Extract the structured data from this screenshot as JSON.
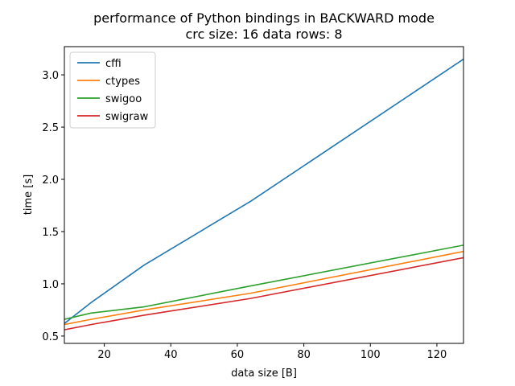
{
  "chart_data": {
    "type": "line",
    "title": "performance of Python bindings in BACKWARD mode",
    "subtitle": "crc size: 16 data rows: 8",
    "xlabel": "data size [B]",
    "ylabel": "time [s]",
    "xlim": [
      8,
      128
    ],
    "ylim": [
      0.43,
      3.27
    ],
    "xticks": [
      20,
      40,
      60,
      80,
      100,
      120
    ],
    "yticks": [
      0.5,
      1.0,
      1.5,
      2.0,
      2.5,
      3.0
    ],
    "xtick_labels": [
      "20",
      "40",
      "60",
      "80",
      "100",
      "120"
    ],
    "ytick_labels": [
      "0.5",
      "1.0",
      "1.5",
      "2.0",
      "2.5",
      "3.0"
    ],
    "grid": false,
    "legend_position": "top-left",
    "x": [
      8,
      16,
      32,
      64,
      128
    ],
    "series": [
      {
        "name": "cffi",
        "color": "#1f77b4",
        "values": [
          0.62,
          0.82,
          1.18,
          1.79,
          3.15
        ]
      },
      {
        "name": "ctypes",
        "color": "#ff7f0e",
        "values": [
          0.61,
          0.66,
          0.75,
          0.91,
          1.31
        ]
      },
      {
        "name": "swigoo",
        "color": "#2ca02c",
        "values": [
          0.66,
          0.72,
          0.78,
          0.98,
          1.37
        ]
      },
      {
        "name": "swigraw",
        "color": "#d62728",
        "values": [
          0.56,
          0.61,
          0.7,
          0.86,
          1.25
        ]
      }
    ]
  }
}
